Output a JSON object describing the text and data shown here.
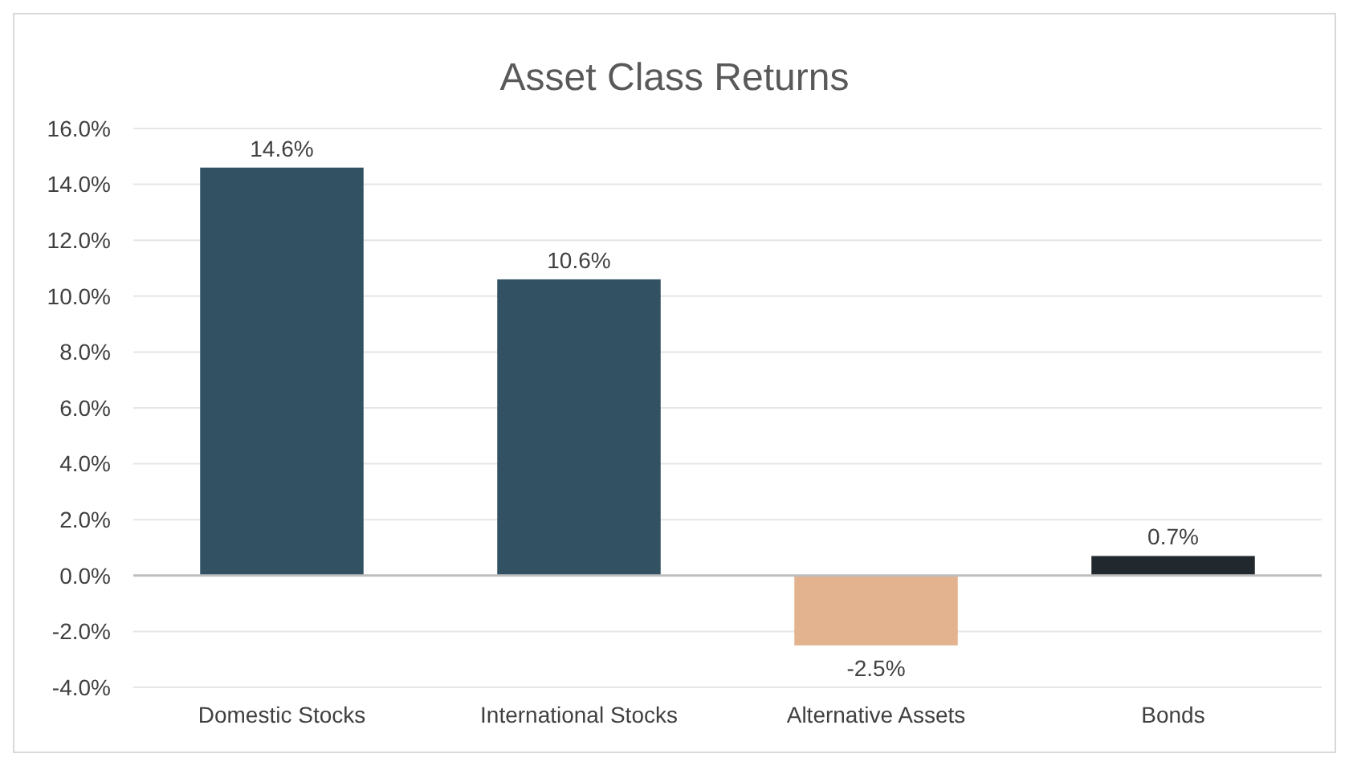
{
  "chart_data": {
    "type": "bar",
    "title": "Asset Class Returns",
    "categories": [
      "Domestic Stocks",
      "International Stocks",
      "Alternative Assets",
      "Bonds"
    ],
    "values": [
      14.6,
      10.6,
      -2.5,
      0.7
    ],
    "colors": [
      "#325263",
      "#325263",
      "#e3b38f",
      "#21282e"
    ],
    "value_labels": [
      "14.6%",
      "10.6%",
      "-2.5%",
      "0.7%"
    ],
    "ylim": [
      -4,
      16
    ],
    "yticks": [
      {
        "value": -4,
        "label": "-4.0%"
      },
      {
        "value": -2,
        "label": "-2.0%"
      },
      {
        "value": 0,
        "label": "0.0%"
      },
      {
        "value": 2,
        "label": "2.0%"
      },
      {
        "value": 4,
        "label": "4.0%"
      },
      {
        "value": 6,
        "label": "6.0%"
      },
      {
        "value": 8,
        "label": "8.0%"
      },
      {
        "value": 10,
        "label": "10.0%"
      },
      {
        "value": 12,
        "label": "12.0%"
      },
      {
        "value": 14,
        "label": "14.0%"
      },
      {
        "value": 16,
        "label": "16.0%"
      }
    ],
    "grid": "y"
  }
}
